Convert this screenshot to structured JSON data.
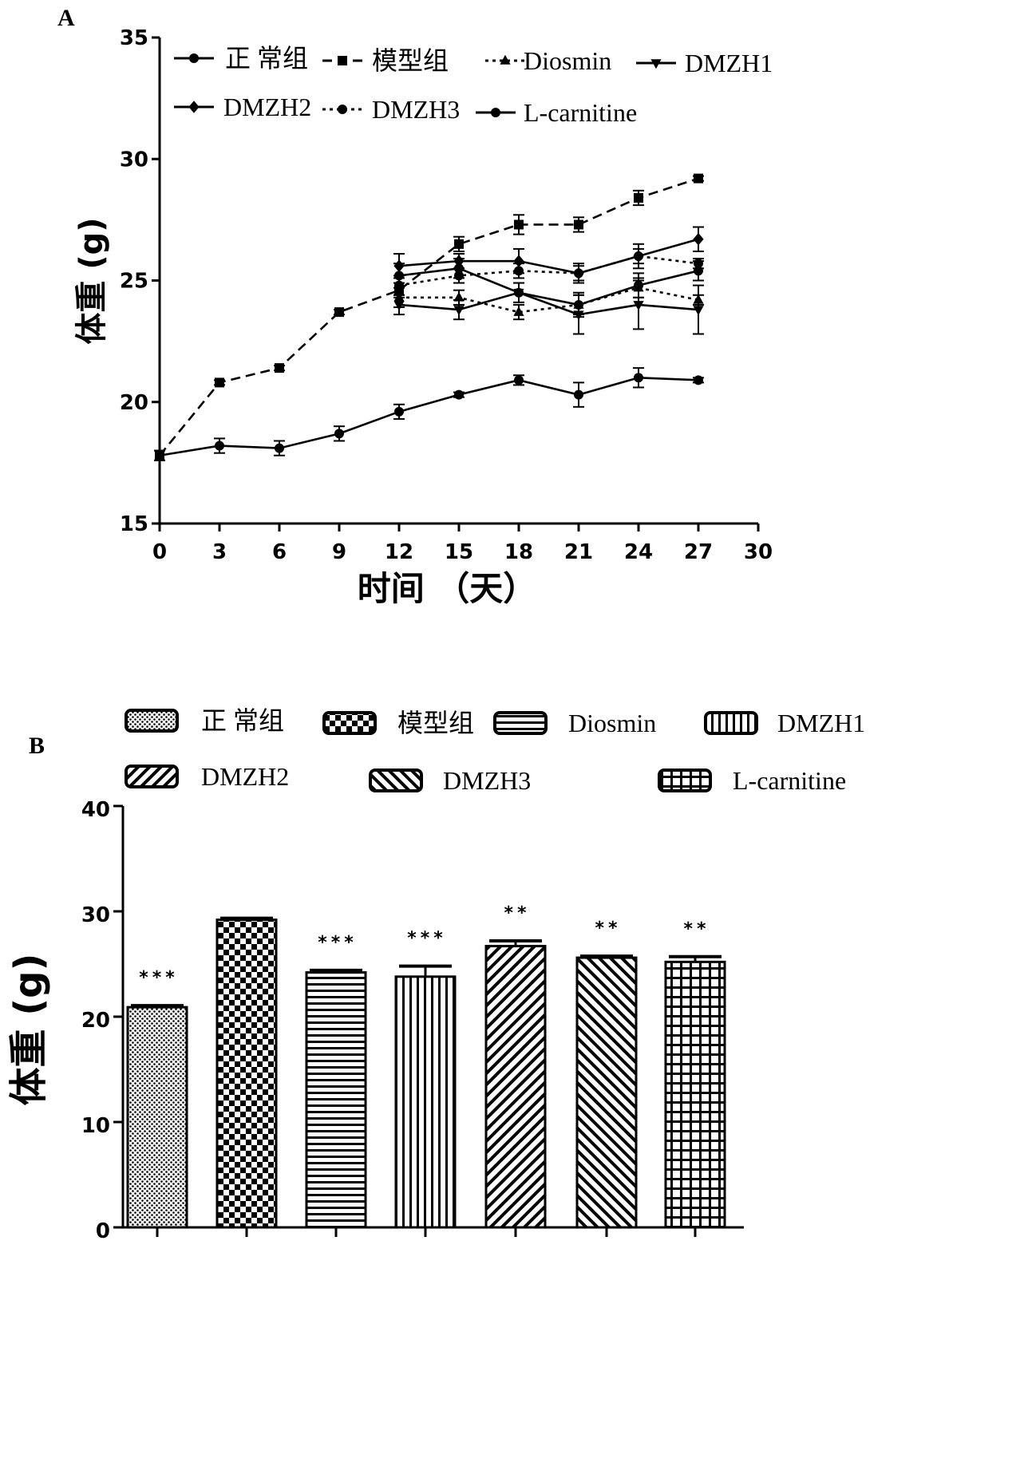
{
  "chart_data": [
    {
      "panel": "A",
      "type": "line",
      "xlabel": "时间 （天）",
      "ylabel": "体重 (g)",
      "xlim": [
        0,
        30
      ],
      "ylim": [
        15,
        35
      ],
      "xticks": [
        0,
        3,
        6,
        9,
        12,
        15,
        18,
        21,
        24,
        27,
        30
      ],
      "yticks": [
        15,
        20,
        25,
        30,
        35
      ],
      "legend_position": "top",
      "series": [
        {
          "name": "正 常组",
          "line": "solid",
          "marker": "circle",
          "x": [
            0,
            3,
            6,
            9,
            12,
            15,
            18,
            21,
            24,
            27
          ],
          "y": [
            17.8,
            18.2,
            18.1,
            18.7,
            19.6,
            20.3,
            20.9,
            20.3,
            21.0,
            20.9
          ],
          "err": [
            0.2,
            0.3,
            0.3,
            0.3,
            0.3,
            0.1,
            0.2,
            0.5,
            0.4,
            0.1
          ]
        },
        {
          "name": "模型组",
          "line": "dashed",
          "marker": "square",
          "x": [
            0,
            3,
            6,
            9,
            12,
            15,
            18,
            21,
            24,
            27
          ],
          "y": [
            17.8,
            20.8,
            21.4,
            23.7,
            24.6,
            26.5,
            27.3,
            27.3,
            28.4,
            29.2
          ],
          "err": [
            0.2,
            0.1,
            0.1,
            0.1,
            0.3,
            0.3,
            0.4,
            0.3,
            0.3,
            0.1
          ]
        },
        {
          "name": "Diosmin",
          "line": "dotted",
          "marker": "triangle-up",
          "x": [
            12,
            15,
            18,
            21,
            24,
            27
          ],
          "y": [
            24.3,
            24.3,
            23.7,
            24.0,
            24.7,
            24.2
          ],
          "err": [
            0.4,
            0.3,
            0.3,
            0.4,
            0.4,
            0.2
          ]
        },
        {
          "name": "DMZH1",
          "line": "solid",
          "marker": "triangle-down",
          "x": [
            12,
            15,
            18,
            21,
            24,
            27
          ],
          "y": [
            24.0,
            23.8,
            24.5,
            23.6,
            24.0,
            23.8
          ],
          "err": [
            0.4,
            0.4,
            0.4,
            0.8,
            1.0,
            1.0
          ]
        },
        {
          "name": "DMZH2",
          "line": "solid",
          "marker": "diamond",
          "x": [
            12,
            15,
            18,
            21,
            24,
            27
          ],
          "y": [
            25.6,
            25.8,
            25.8,
            25.3,
            26.0,
            26.7
          ],
          "err": [
            0.5,
            0.3,
            0.5,
            0.4,
            0.5,
            0.5
          ]
        },
        {
          "name": "DMZH3",
          "line": "dotted",
          "marker": "circle",
          "x": [
            12,
            15,
            18,
            21,
            24,
            27
          ],
          "y": [
            24.8,
            25.2,
            25.4,
            25.3,
            26.0,
            25.7
          ],
          "err": [
            0.4,
            0.3,
            0.3,
            0.3,
            0.3,
            0.2
          ]
        },
        {
          "name": "L-carnitine",
          "line": "solid",
          "marker": "circle",
          "x": [
            12,
            15,
            18,
            21,
            24,
            27
          ],
          "y": [
            25.2,
            25.5,
            24.5,
            24.0,
            24.8,
            25.4
          ],
          "err": [
            0.5,
            0.4,
            0.4,
            0.5,
            0.5,
            0.4
          ]
        }
      ]
    },
    {
      "panel": "B",
      "type": "bar",
      "ylabel": "体重 (g)",
      "ylim": [
        0,
        40
      ],
      "yticks": [
        0,
        10,
        20,
        30,
        40
      ],
      "legend_position": "top",
      "categories": [
        "正 常组",
        "模型组",
        "Diosmin",
        "DMZH1",
        "DMZH2",
        "DMZH3",
        "L-carnitine"
      ],
      "patterns": [
        "dots",
        "checker",
        "horizontal-stripes",
        "vertical-stripes",
        "diagonal-up",
        "diagonal-down",
        "grid"
      ],
      "values": [
        20.9,
        29.2,
        24.2,
        23.8,
        26.7,
        25.6,
        25.2
      ],
      "err": [
        0.15,
        0.15,
        0.2,
        1.0,
        0.5,
        0.15,
        0.5
      ],
      "significance": [
        "***",
        "",
        "***",
        "***",
        "**",
        "**",
        "**"
      ]
    }
  ]
}
